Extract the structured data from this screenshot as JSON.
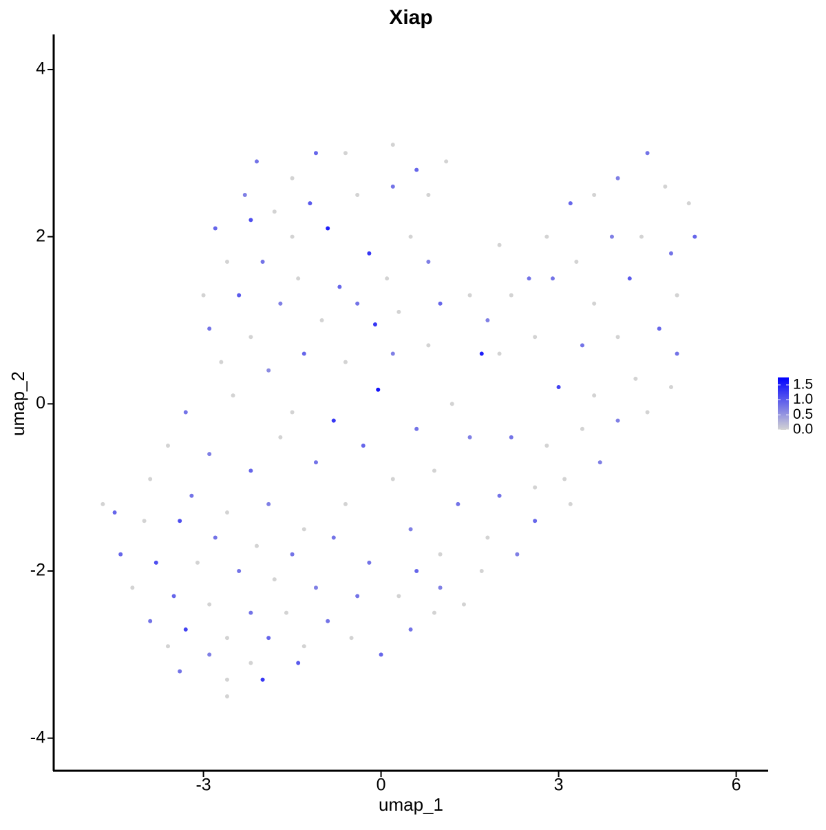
{
  "chart_data": {
    "type": "scatter",
    "title": "Xiap",
    "x_label": "umap_1",
    "y_label": "umap_2",
    "xlim": [
      -5.53,
      6.54
    ],
    "ylim": [
      -4.39,
      4.42
    ],
    "xticks": [
      -3,
      0,
      3,
      6
    ],
    "yticks": [
      -4,
      -2,
      0,
      2,
      4
    ],
    "color_low": "#d3d3d3",
    "color_high": "#0000ff",
    "clim": [
      0,
      1.75
    ],
    "colorbar_ticks": [
      1.5,
      {
        "value": 1,
        "label": "1.0"
      },
      0.5,
      {
        "value": 0,
        "label": "0.0"
      }
    ],
    "x": [
      -2.1,
      -1.5,
      -1.1,
      -0.6,
      0.2,
      0.6,
      1.1,
      -2.3,
      -1.8,
      -1.2,
      -0.4,
      0.2,
      0.8,
      -2.8,
      -2.2,
      -1.5,
      -0.9,
      -0.2,
      0.5,
      -2.6,
      -2.0,
      -1.4,
      -0.7,
      0.1,
      0.8,
      -3.0,
      -2.4,
      -1.7,
      -1.0,
      -0.4,
      0.3,
      1.0,
      -2.9,
      -2.2,
      -1.3,
      -0.6,
      0.2,
      0.8,
      -2.7,
      -1.9,
      -0.1,
      1.5,
      2.0,
      2.5,
      2.8,
      3.2,
      3.6,
      4.0,
      4.5,
      4.8,
      5.2,
      5.3,
      4.9,
      4.4,
      3.9,
      3.3,
      2.9,
      2.2,
      1.8,
      3.6,
      4.2,
      5.0,
      4.7,
      4.0,
      3.4,
      2.6,
      2.0,
      1.7,
      3.0,
      3.6,
      4.3,
      5.0,
      4.9,
      4.5,
      4.0,
      3.4,
      2.8,
      2.2,
      3.1,
      3.7,
      2.6,
      2.0,
      3.2,
      2.6,
      1.8,
      2.3,
      1.7,
      -0.05,
      -0.8,
      0.6,
      1.2,
      -1.5,
      -0.3,
      0.9,
      1.5,
      -1.1,
      0.2,
      1.3,
      -0.6,
      0.5,
      -1.3,
      1.0,
      -0.2,
      -2.5,
      -3.3,
      -3.6,
      -2.9,
      -2.2,
      -1.7,
      -3.9,
      -3.2,
      -2.6,
      -1.9,
      -4.5,
      -4.7,
      -4.0,
      -3.4,
      -2.8,
      -2.1,
      -1.5,
      -4.4,
      -3.8,
      -3.1,
      -2.4,
      -1.8,
      -1.1,
      -4.2,
      -3.5,
      -2.9,
      -2.2,
      -1.6,
      -0.9,
      -3.9,
      -3.3,
      -2.6,
      -1.9,
      -1.3,
      -0.5,
      -3.6,
      -2.9,
      -2.2,
      -1.4,
      -3.4,
      -2.6,
      -2.0,
      -2.6,
      0.0,
      0.5,
      0.9,
      0.3,
      -0.4,
      1.0,
      1.4,
      0.6,
      -0.8
    ],
    "values": [
      2.9,
      2.7,
      3.0,
      3.0,
      3.1,
      2.8,
      2.9,
      2.5,
      2.3,
      2.4,
      2.5,
      2.6,
      2.5,
      2.1,
      2.2,
      2.0,
      2.1,
      1.8,
      2.0,
      1.7,
      1.7,
      1.5,
      1.4,
      1.5,
      1.7,
      1.3,
      1.3,
      1.2,
      1.0,
      1.2,
      1.1,
      1.2,
      0.9,
      0.8,
      0.6,
      0.5,
      0.6,
      0.7,
      0.5,
      0.4,
      0.95,
      1.3,
      1.9,
      1.5,
      2.0,
      2.4,
      2.5,
      2.7,
      3.0,
      2.6,
      2.4,
      2.0,
      1.8,
      2.0,
      2.0,
      1.7,
      1.5,
      1.3,
      1.0,
      1.2,
      1.5,
      1.3,
      0.9,
      0.8,
      0.7,
      0.8,
      0.6,
      0.6,
      0.2,
      0.1,
      0.3,
      0.6,
      0.2,
      -0.1,
      -0.2,
      -0.3,
      -0.5,
      -0.4,
      -0.9,
      -0.7,
      -1.0,
      -1.1,
      -1.2,
      -1.4,
      -1.6,
      -1.8,
      -2.0,
      0.17,
      -0.2,
      -0.3,
      0.0,
      -0.1,
      -0.5,
      -0.8,
      -0.4,
      -0.7,
      -0.9,
      -1.2,
      -1.2,
      -1.5,
      -1.5,
      -1.8,
      -1.9,
      0.1,
      -0.1,
      -0.5,
      -0.6,
      -0.8,
      -0.4,
      -0.9,
      -1.1,
      -1.3,
      -1.2,
      -1.3,
      -1.2,
      -1.4,
      -1.4,
      -1.6,
      -1.7,
      -1.8,
      -1.8,
      -1.9,
      -1.9,
      -2.0,
      -2.1,
      -2.2,
      -2.2,
      -2.3,
      -2.4,
      -2.5,
      -2.5,
      -2.6,
      -2.6,
      -2.7,
      -2.8,
      -2.8,
      -2.9,
      -2.8,
      -2.9,
      -3.0,
      -3.1,
      -3.1,
      -3.2,
      -3.3,
      -3.3,
      -3.5,
      -3.0,
      -2.7,
      -2.5,
      -2.3,
      -2.3,
      -2.2,
      -2.4,
      -2.0,
      -1.6
    ],
    "expression": [
      0.8,
      0,
      0.9,
      0,
      0,
      0.9,
      0,
      0.7,
      0,
      1.0,
      0,
      0.8,
      0,
      0.9,
      1.1,
      0,
      1.5,
      1.3,
      0,
      0,
      0.8,
      0,
      0.9,
      0,
      0.7,
      0,
      1.0,
      0.7,
      0,
      0.8,
      0,
      0.9,
      0.8,
      0,
      0.9,
      0,
      0.7,
      0,
      0,
      0.6,
      1.3,
      0,
      0,
      0.8,
      0,
      0.9,
      0,
      0.7,
      0.8,
      0,
      0,
      0.9,
      0.8,
      0,
      0.7,
      0,
      0.8,
      0,
      0.7,
      0,
      1.0,
      0,
      0.9,
      0,
      0.8,
      0,
      0,
      1.5,
      1.2,
      0,
      0,
      0.8,
      0,
      0,
      0.7,
      0,
      0,
      0.8,
      0,
      0.7,
      0,
      0.8,
      0,
      0.9,
      0,
      0.7,
      0,
      1.6,
      1.3,
      0.8,
      0,
      0,
      0.9,
      0,
      0.7,
      0.8,
      0,
      0.8,
      0,
      0.7,
      0,
      0,
      0.8,
      0,
      0.8,
      0,
      0.7,
      0.9,
      0,
      0,
      0.8,
      0,
      0.7,
      0.9,
      0,
      0,
      1.1,
      0.8,
      0,
      0.8,
      0.9,
      1.1,
      0,
      0.8,
      0,
      0.7,
      0,
      0.9,
      0,
      0.8,
      0,
      0.8,
      0.8,
      1.2,
      0,
      0.9,
      0,
      0,
      0,
      0.7,
      0,
      1.0,
      0.8,
      0,
      1.3,
      0,
      0.9,
      0.8,
      0,
      0,
      0.8,
      0.7,
      0,
      0.9,
      0.8
    ]
  }
}
